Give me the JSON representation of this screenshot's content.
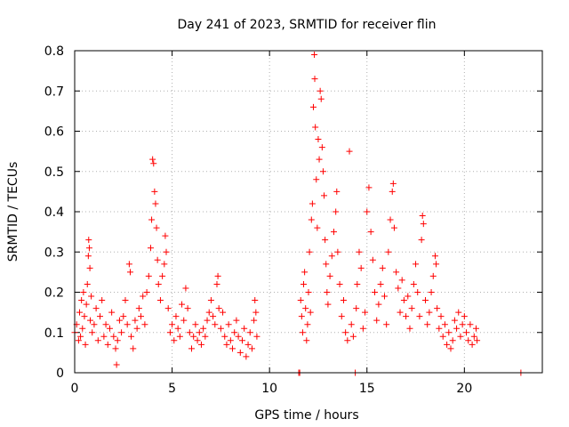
{
  "chart_data": {
    "type": "scatter",
    "title": "Day 241 of 2023, SRMTID for receiver flin",
    "xlabel": "GPS time / hours",
    "ylabel": "SRMTID / TECUs",
    "xlim": [
      0,
      24
    ],
    "ylim": [
      0,
      0.8
    ],
    "xticks": [
      0,
      5,
      10,
      15,
      20
    ],
    "xtick_labels": [
      "0",
      "5",
      "10",
      "15",
      "20"
    ],
    "yticks": [
      0,
      0.1,
      0.2,
      0.3,
      0.4,
      0.5,
      0.6,
      0.7,
      0.8
    ],
    "ytick_labels": [
      "0",
      "0.1",
      "0.2",
      "0.3",
      "0.4",
      "0.5",
      "0.6",
      "0.7",
      "0.8"
    ],
    "grid": true,
    "marker": "+",
    "color": "#ff0000",
    "series": [
      {
        "name": "SRMTID",
        "points": [
          [
            0.0,
            0.1
          ],
          [
            0.1,
            0.12
          ],
          [
            0.2,
            0.08
          ],
          [
            0.25,
            0.15
          ],
          [
            0.3,
            0.09
          ],
          [
            0.35,
            0.18
          ],
          [
            0.4,
            0.11
          ],
          [
            0.45,
            0.2
          ],
          [
            0.5,
            0.14
          ],
          [
            0.55,
            0.07
          ],
          [
            0.6,
            0.17
          ],
          [
            0.65,
            0.22
          ],
          [
            0.7,
            0.29
          ],
          [
            0.72,
            0.33
          ],
          [
            0.75,
            0.31
          ],
          [
            0.78,
            0.26
          ],
          [
            0.8,
            0.13
          ],
          [
            0.85,
            0.19
          ],
          [
            0.9,
            0.1
          ],
          [
            1.0,
            0.12
          ],
          [
            1.1,
            0.16
          ],
          [
            1.2,
            0.08
          ],
          [
            1.3,
            0.14
          ],
          [
            1.4,
            0.18
          ],
          [
            1.5,
            0.09
          ],
          [
            1.6,
            0.12
          ],
          [
            1.7,
            0.07
          ],
          [
            1.8,
            0.11
          ],
          [
            1.9,
            0.15
          ],
          [
            2.0,
            0.09
          ],
          [
            2.1,
            0.06
          ],
          [
            2.15,
            0.02
          ],
          [
            2.2,
            0.08
          ],
          [
            2.3,
            0.13
          ],
          [
            2.4,
            0.1
          ],
          [
            2.5,
            0.14
          ],
          [
            2.6,
            0.18
          ],
          [
            2.7,
            0.12
          ],
          [
            2.8,
            0.27
          ],
          [
            2.85,
            0.25
          ],
          [
            2.9,
            0.09
          ],
          [
            3.0,
            0.06
          ],
          [
            3.1,
            0.13
          ],
          [
            3.2,
            0.11
          ],
          [
            3.3,
            0.16
          ],
          [
            3.4,
            0.14
          ],
          [
            3.5,
            0.19
          ],
          [
            3.6,
            0.12
          ],
          [
            3.7,
            0.2
          ],
          [
            3.8,
            0.24
          ],
          [
            3.9,
            0.31
          ],
          [
            3.95,
            0.38
          ],
          [
            4.0,
            0.53
          ],
          [
            4.05,
            0.52
          ],
          [
            4.1,
            0.45
          ],
          [
            4.15,
            0.42
          ],
          [
            4.2,
            0.36
          ],
          [
            4.25,
            0.28
          ],
          [
            4.3,
            0.22
          ],
          [
            4.4,
            0.18
          ],
          [
            4.5,
            0.24
          ],
          [
            4.6,
            0.27
          ],
          [
            4.65,
            0.34
          ],
          [
            4.7,
            0.3
          ],
          [
            4.8,
            0.16
          ],
          [
            4.9,
            0.1
          ],
          [
            5.0,
            0.12
          ],
          [
            5.1,
            0.08
          ],
          [
            5.2,
            0.14
          ],
          [
            5.3,
            0.11
          ],
          [
            5.4,
            0.09
          ],
          [
            5.5,
            0.17
          ],
          [
            5.6,
            0.13
          ],
          [
            5.7,
            0.21
          ],
          [
            5.8,
            0.16
          ],
          [
            5.9,
            0.1
          ],
          [
            6.0,
            0.06
          ],
          [
            6.1,
            0.09
          ],
          [
            6.2,
            0.12
          ],
          [
            6.3,
            0.08
          ],
          [
            6.4,
            0.1
          ],
          [
            6.5,
            0.07
          ],
          [
            6.6,
            0.11
          ],
          [
            6.7,
            0.09
          ],
          [
            6.8,
            0.13
          ],
          [
            6.9,
            0.15
          ],
          [
            7.0,
            0.18
          ],
          [
            7.1,
            0.14
          ],
          [
            7.2,
            0.12
          ],
          [
            7.3,
            0.22
          ],
          [
            7.35,
            0.24
          ],
          [
            7.4,
            0.16
          ],
          [
            7.5,
            0.11
          ],
          [
            7.6,
            0.15
          ],
          [
            7.7,
            0.09
          ],
          [
            7.8,
            0.07
          ],
          [
            7.9,
            0.12
          ],
          [
            8.0,
            0.08
          ],
          [
            8.1,
            0.06
          ],
          [
            8.2,
            0.1
          ],
          [
            8.3,
            0.13
          ],
          [
            8.4,
            0.09
          ],
          [
            8.5,
            0.05
          ],
          [
            8.6,
            0.08
          ],
          [
            8.7,
            0.11
          ],
          [
            8.8,
            0.04
          ],
          [
            8.9,
            0.07
          ],
          [
            9.0,
            0.1
          ],
          [
            9.1,
            0.06
          ],
          [
            9.2,
            0.13
          ],
          [
            9.25,
            0.18
          ],
          [
            9.3,
            0.15
          ],
          [
            9.35,
            0.09
          ],
          [
            11.5,
            0.0
          ],
          [
            11.55,
            0.0
          ],
          [
            11.6,
            0.18
          ],
          [
            11.65,
            0.14
          ],
          [
            11.7,
            0.1
          ],
          [
            11.75,
            0.22
          ],
          [
            11.8,
            0.25
          ],
          [
            11.85,
            0.16
          ],
          [
            11.9,
            0.08
          ],
          [
            11.95,
            0.12
          ],
          [
            12.0,
            0.2
          ],
          [
            12.05,
            0.3
          ],
          [
            12.1,
            0.15
          ],
          [
            12.15,
            0.38
          ],
          [
            12.2,
            0.42
          ],
          [
            12.25,
            0.66
          ],
          [
            12.3,
            0.79
          ],
          [
            12.32,
            0.73
          ],
          [
            12.35,
            0.61
          ],
          [
            12.4,
            0.48
          ],
          [
            12.45,
            0.36
          ],
          [
            12.5,
            0.58
          ],
          [
            12.55,
            0.53
          ],
          [
            12.6,
            0.7
          ],
          [
            12.65,
            0.68
          ],
          [
            12.7,
            0.56
          ],
          [
            12.75,
            0.5
          ],
          [
            12.8,
            0.44
          ],
          [
            12.85,
            0.33
          ],
          [
            12.9,
            0.27
          ],
          [
            12.95,
            0.2
          ],
          [
            13.0,
            0.17
          ],
          [
            13.1,
            0.24
          ],
          [
            13.2,
            0.29
          ],
          [
            13.3,
            0.35
          ],
          [
            13.4,
            0.4
          ],
          [
            13.45,
            0.45
          ],
          [
            13.5,
            0.3
          ],
          [
            13.6,
            0.22
          ],
          [
            13.7,
            0.14
          ],
          [
            13.8,
            0.18
          ],
          [
            13.9,
            0.1
          ],
          [
            14.0,
            0.08
          ],
          [
            14.1,
            0.55
          ],
          [
            14.2,
            0.12
          ],
          [
            14.3,
            0.09
          ],
          [
            14.4,
            0.0
          ],
          [
            14.45,
            0.16
          ],
          [
            14.5,
            0.22
          ],
          [
            14.6,
            0.3
          ],
          [
            14.7,
            0.26
          ],
          [
            14.8,
            0.11
          ],
          [
            14.9,
            0.15
          ],
          [
            15.0,
            0.4
          ],
          [
            15.1,
            0.46
          ],
          [
            15.2,
            0.35
          ],
          [
            15.3,
            0.28
          ],
          [
            15.4,
            0.2
          ],
          [
            15.5,
            0.13
          ],
          [
            15.6,
            0.17
          ],
          [
            15.7,
            0.22
          ],
          [
            15.8,
            0.26
          ],
          [
            15.9,
            0.19
          ],
          [
            16.0,
            0.12
          ],
          [
            16.1,
            0.3
          ],
          [
            16.2,
            0.38
          ],
          [
            16.3,
            0.45
          ],
          [
            16.35,
            0.47
          ],
          [
            16.4,
            0.36
          ],
          [
            16.5,
            0.25
          ],
          [
            16.6,
            0.21
          ],
          [
            16.7,
            0.15
          ],
          [
            16.8,
            0.23
          ],
          [
            16.9,
            0.18
          ],
          [
            17.0,
            0.14
          ],
          [
            17.1,
            0.19
          ],
          [
            17.2,
            0.11
          ],
          [
            17.3,
            0.16
          ],
          [
            17.4,
            0.22
          ],
          [
            17.5,
            0.27
          ],
          [
            17.6,
            0.2
          ],
          [
            17.7,
            0.14
          ],
          [
            17.8,
            0.33
          ],
          [
            17.85,
            0.39
          ],
          [
            17.9,
            0.37
          ],
          [
            18.0,
            0.18
          ],
          [
            18.1,
            0.12
          ],
          [
            18.2,
            0.15
          ],
          [
            18.3,
            0.2
          ],
          [
            18.4,
            0.24
          ],
          [
            18.5,
            0.29
          ],
          [
            18.55,
            0.27
          ],
          [
            18.6,
            0.16
          ],
          [
            18.7,
            0.11
          ],
          [
            18.8,
            0.14
          ],
          [
            18.9,
            0.09
          ],
          [
            19.0,
            0.12
          ],
          [
            19.1,
            0.07
          ],
          [
            19.2,
            0.1
          ],
          [
            19.3,
            0.06
          ],
          [
            19.4,
            0.08
          ],
          [
            19.5,
            0.13
          ],
          [
            19.6,
            0.11
          ],
          [
            19.7,
            0.15
          ],
          [
            19.8,
            0.09
          ],
          [
            19.9,
            0.12
          ],
          [
            20.0,
            0.14
          ],
          [
            20.1,
            0.1
          ],
          [
            20.2,
            0.08
          ],
          [
            20.3,
            0.12
          ],
          [
            20.4,
            0.07
          ],
          [
            20.5,
            0.09
          ],
          [
            20.6,
            0.11
          ],
          [
            20.65,
            0.08
          ],
          [
            22.9,
            0.0
          ]
        ]
      }
    ]
  }
}
